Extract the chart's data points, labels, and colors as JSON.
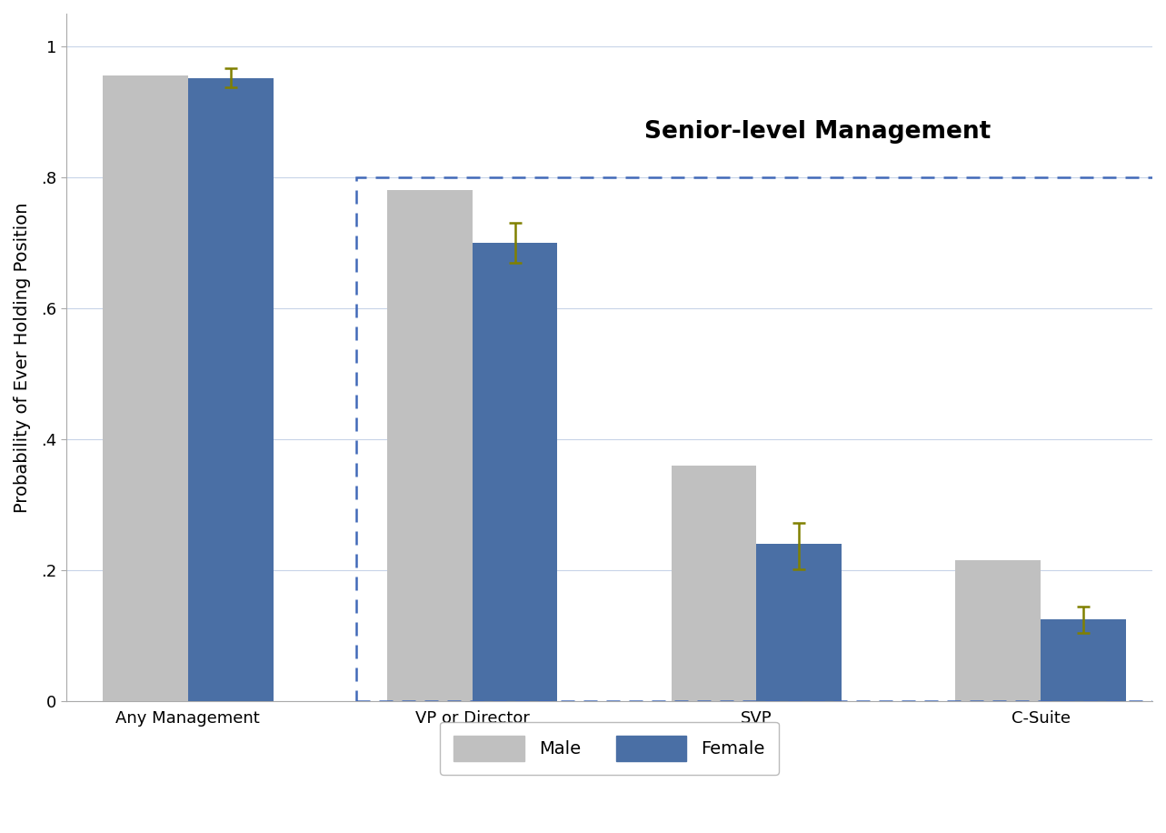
{
  "categories": [
    "Any Management",
    "VP or Director",
    "SVP",
    "C-Suite"
  ],
  "male_values": [
    0.955,
    0.78,
    0.36,
    0.215
  ],
  "female_values": [
    0.952,
    0.7,
    0.24,
    0.125
  ],
  "female_errors_upper": [
    0.015,
    0.03,
    0.032,
    0.02
  ],
  "female_errors_lower": [
    0.015,
    0.03,
    0.038,
    0.02
  ],
  "male_color": "#c0c0c0",
  "female_color": "#4a6fa5",
  "error_color": "#808000",
  "ylabel": "Probability of Ever Holding Position",
  "ylim": [
    0,
    1.05
  ],
  "yticks": [
    0,
    0.2,
    0.4,
    0.6,
    0.8,
    1.0
  ],
  "ytick_labels": [
    "0",
    ".2",
    ".4",
    ".6",
    ".8",
    "1"
  ],
  "bar_width": 0.42,
  "senior_label": "Senior-level Management",
  "senior_box_color": "#4169b8",
  "background_color": "#ffffff",
  "legend_labels": [
    "Male",
    "Female"
  ],
  "title_fontsize": 19,
  "axis_fontsize": 14,
  "tick_fontsize": 13,
  "legend_fontsize": 14,
  "group_positions": [
    0.5,
    1.9,
    3.3,
    4.7
  ]
}
